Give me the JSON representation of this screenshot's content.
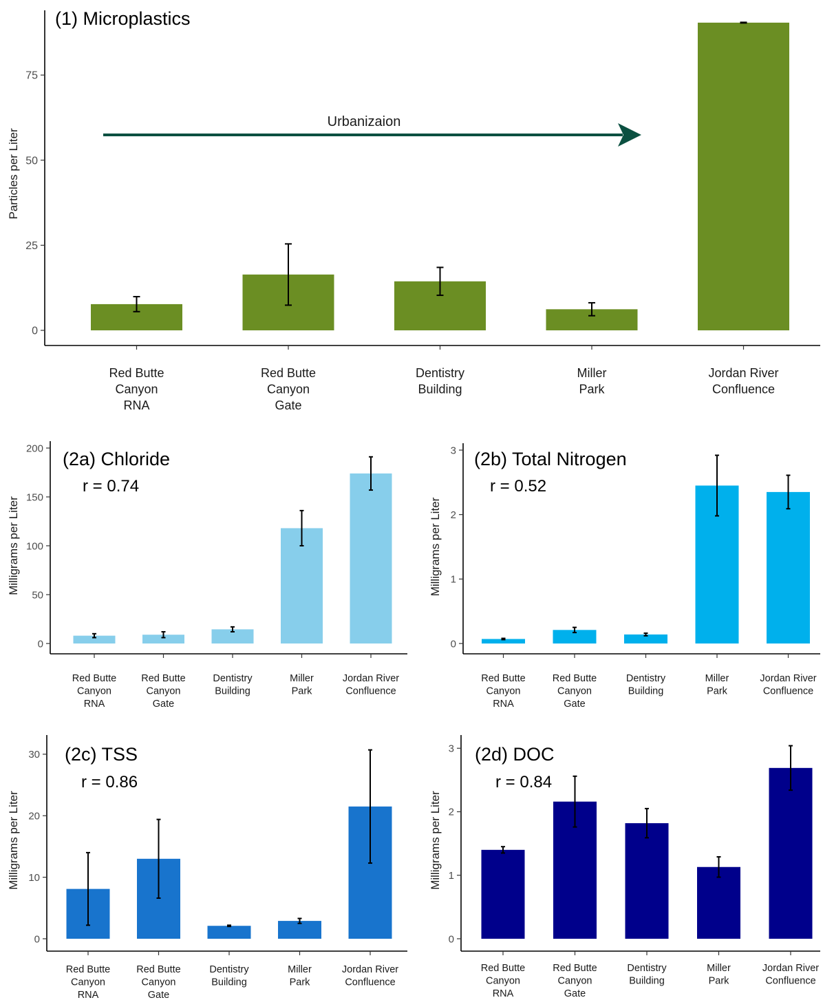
{
  "chart_data": [
    {
      "type": "bar",
      "title": "(1) Microplastics",
      "annotation": "",
      "xlabel": "",
      "ylabel": "Particles per Liter",
      "ylim": [
        0,
        92
      ],
      "yticks": [
        0,
        25,
        50,
        75
      ],
      "categories": [
        [
          "Red Butte",
          "Canyon",
          "RNA"
        ],
        [
          "Red Butte",
          "Canyon",
          "Gate"
        ],
        [
          "Dentistry",
          "Building"
        ],
        [
          "Miller",
          "Park"
        ],
        [
          "Jordan River",
          "Confluence"
        ]
      ],
      "values": [
        7.7,
        16.4,
        14.4,
        6.2,
        90.4
      ],
      "errors": [
        2.2,
        9.0,
        4.1,
        1.9,
        0.1
      ],
      "color": "#6B8E23",
      "arrow": {
        "label": "Urbanizaion",
        "color": "#0B5041"
      },
      "grid": false,
      "legend": "none"
    },
    {
      "type": "bar",
      "title": "(2a) Chloride",
      "annotation": "r = 0.74",
      "xlabel": "",
      "ylabel": "Milligrams per Liter",
      "ylim": [
        0,
        200
      ],
      "yticks": [
        0,
        50,
        100,
        150,
        200
      ],
      "categories": [
        [
          "Red Butte",
          "Canyon",
          "RNA"
        ],
        [
          "Red Butte",
          "Canyon",
          "Gate"
        ],
        [
          "Dentistry",
          "Building"
        ],
        [
          "Miller",
          "Park"
        ],
        [
          "Jordan River",
          "Confluence"
        ]
      ],
      "values": [
        8,
        9,
        14.5,
        118,
        174
      ],
      "errors": [
        2,
        3,
        2.5,
        18,
        17
      ],
      "color": "#87CEEB",
      "grid": false,
      "legend": "none"
    },
    {
      "type": "bar",
      "title": "(2b) Total Nitrogen",
      "annotation": "r = 0.52",
      "xlabel": "",
      "ylabel": "Milligrams per Liter",
      "ylim": [
        0,
        3
      ],
      "yticks": [
        0,
        1,
        2,
        3
      ],
      "categories": [
        [
          "Red Butte",
          "Canyon",
          "RNA"
        ],
        [
          "Red Butte",
          "Canyon",
          "Gate"
        ],
        [
          "Dentistry",
          "Building"
        ],
        [
          "Miller",
          "Park"
        ],
        [
          "Jordan River",
          "Confluence"
        ]
      ],
      "values": [
        0.07,
        0.21,
        0.14,
        2.45,
        2.35
      ],
      "errors": [
        0.01,
        0.04,
        0.02,
        0.47,
        0.26
      ],
      "color": "#00B0EC",
      "grid": false,
      "legend": "none"
    },
    {
      "type": "bar",
      "title": "(2c) TSS",
      "annotation": "r = 0.86",
      "xlabel": "",
      "ylabel": "Milligrams per Liter",
      "ylim": [
        0,
        32
      ],
      "yticks": [
        0,
        10,
        20,
        30
      ],
      "categories": [
        [
          "Red Butte",
          "Canyon",
          "RNA"
        ],
        [
          "Red Butte",
          "Canyon",
          "Gate"
        ],
        [
          "Dentistry",
          "Building"
        ],
        [
          "Miller",
          "Park"
        ],
        [
          "Jordan River",
          "Confluence"
        ]
      ],
      "values": [
        8.1,
        13,
        2.1,
        2.9,
        21.5
      ],
      "errors": [
        5.9,
        6.4,
        0.1,
        0.4,
        9.2
      ],
      "color": "#1874CD",
      "grid": false,
      "legend": "none"
    },
    {
      "type": "bar",
      "title": "(2d) DOC",
      "annotation": "r = 0.84",
      "xlabel": "",
      "ylabel": "Milligrams per Liter",
      "ylim": [
        0,
        3.1
      ],
      "yticks": [
        0,
        1,
        2,
        3
      ],
      "categories": [
        [
          "Red Butte",
          "Canyon",
          "RNA"
        ],
        [
          "Red Butte",
          "Canyon",
          "Gate"
        ],
        [
          "Dentistry",
          "Building"
        ],
        [
          "Miller",
          "Park"
        ],
        [
          "Jordan River",
          "Confluence"
        ]
      ],
      "values": [
        1.4,
        2.16,
        1.82,
        1.13,
        2.69
      ],
      "errors": [
        0.05,
        0.4,
        0.23,
        0.16,
        0.35
      ],
      "color": "#00008B",
      "grid": false,
      "legend": "none"
    }
  ]
}
